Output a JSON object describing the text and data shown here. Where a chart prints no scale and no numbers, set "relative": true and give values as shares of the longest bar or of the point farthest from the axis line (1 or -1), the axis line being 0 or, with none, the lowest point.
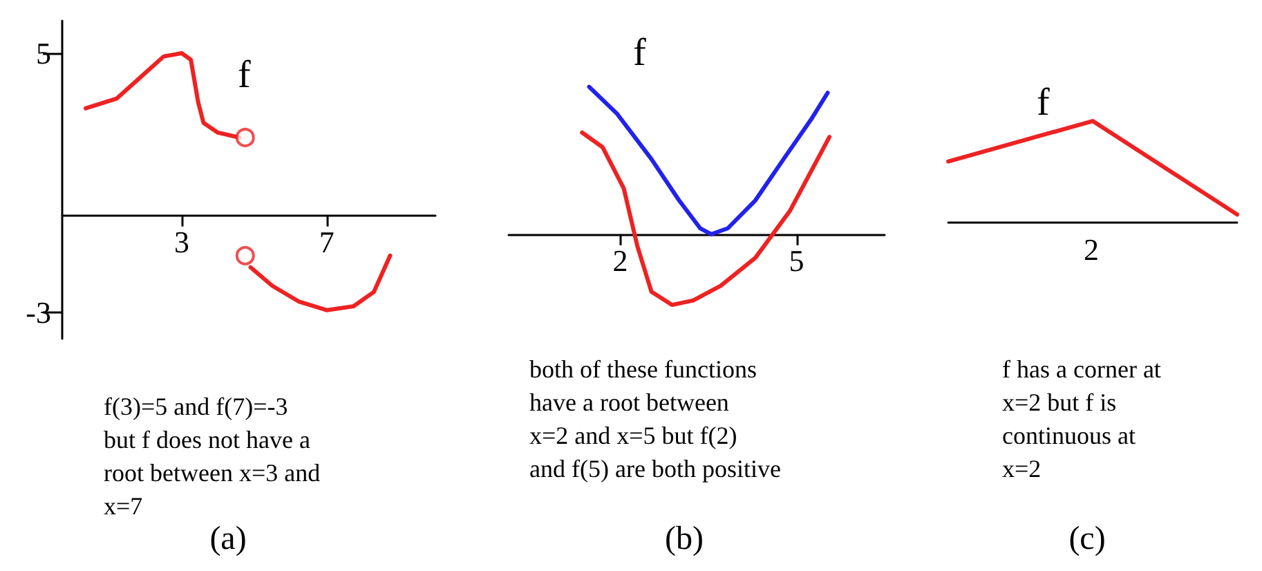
{
  "chart_data": [
    {
      "type": "line",
      "title": "(a)",
      "xlim": [
        -0.3,
        10
      ],
      "ylim": [
        -3.8,
        6
      ],
      "xticks": [
        3,
        7
      ],
      "yticks": [
        -3,
        5
      ],
      "grid": false,
      "marker": "none",
      "line_style": "solid",
      "series": [
        {
          "color": "#ee2222",
          "x": [
            0.35,
            1.2,
            1.95,
            2.5,
            3,
            3.25,
            3.45,
            3.6,
            4.0,
            4.6
          ],
          "values": [
            3.3,
            3.6,
            4.35,
            4.9,
            5,
            4.8,
            3.5,
            2.85,
            2.55,
            2.4
          ]
        },
        {
          "color": "#ee2222",
          "x": [
            4.9,
            5.5,
            6.24,
            7,
            7.74,
            8.3,
            8.75
          ],
          "values": [
            -1.6,
            -2.17,
            -2.66,
            -2.92,
            -2.8,
            -2.36,
            -1.24
          ]
        },
        {
          "type": "scatter",
          "marker": "circle",
          "color": "#ee2222",
          "x": [
            4.75,
            4.75
          ],
          "values": [
            2.4,
            -1.24
          ]
        }
      ],
      "annotations": [
        "f",
        "f(3)=5 and f(7)=-3\nbut f does not have a\nroot between x=3 and\nx=7"
      ]
    },
    {
      "type": "line",
      "title": "(b)",
      "relative": true,
      "xlim": [
        0.1,
        6.5
      ],
      "xticks": [
        2,
        5
      ],
      "tick_labels": "x",
      "grid": false,
      "marker": "none",
      "line_style": "solid",
      "series": [
        {
          "color": "#ee2222",
          "x": [
            1.35,
            1.7,
            2.06,
            2.29,
            2.53,
            2.88,
            3.24,
            3.71,
            4.3,
            4.89,
            5.56
          ],
          "values": [
            0.69,
            0.59,
            0.31,
            -0.08,
            -0.39,
            -0.48,
            -0.45,
            -0.35,
            -0.16,
            0.16,
            0.66
          ]
        },
        {
          "color": "#2222ee",
          "x": [
            1.47,
            1.94,
            2.53,
            3.0,
            3.36,
            3.55,
            3.83,
            4.3,
            4.78,
            5.25,
            5.53
          ],
          "values": [
            1,
            0.82,
            0.51,
            0.23,
            0.04,
            0,
            0.04,
            0.23,
            0.51,
            0.78,
            0.96
          ]
        }
      ],
      "annotations": [
        "f",
        "both of these functions\nhave a root between\nx=2 and x=5 but f(2)\nand f(5) are both positive"
      ]
    },
    {
      "type": "line",
      "title": "(c)",
      "relative": true,
      "categories": [
        null,
        null,
        null
      ],
      "tick_labels": false,
      "grid": false,
      "marker": "none",
      "line_style": "solid",
      "series": [
        {
          "color": "#ee2222",
          "values": [
            0.6,
            1,
            0.075
          ]
        }
      ],
      "annotations": [
        "f",
        "2",
        "f has a corner at\nx=2 but f is\ncontinuous at\nx=2"
      ]
    }
  ]
}
